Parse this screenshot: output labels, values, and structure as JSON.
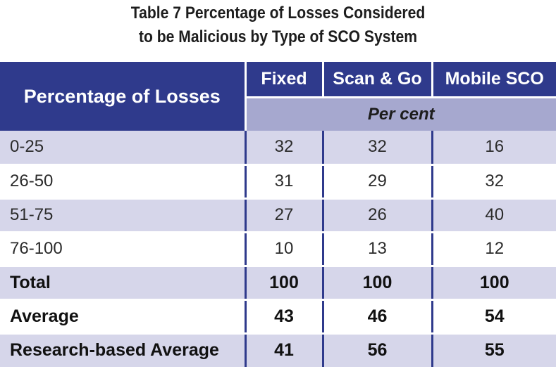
{
  "title": {
    "line1": "Table 7 Percentage of Losses Considered",
    "line2": "to be Malicious by Type of SCO System"
  },
  "header": {
    "row_label": "Percentage of Losses",
    "columns": [
      "Fixed",
      "Scan & Go",
      "Mobile SCO"
    ],
    "unit": "Per cent"
  },
  "rows": [
    {
      "label": "0-25",
      "values": [
        "32",
        "32",
        "16"
      ]
    },
    {
      "label": "26-50",
      "values": [
        "31",
        "29",
        "32"
      ]
    },
    {
      "label": "51-75",
      "values": [
        "27",
        "26",
        "40"
      ]
    },
    {
      "label": "76-100",
      "values": [
        "10",
        "13",
        "12"
      ]
    },
    {
      "label": "Total",
      "values": [
        "100",
        "100",
        "100"
      ]
    },
    {
      "label": "Average",
      "values": [
        "43",
        "46",
        "54"
      ]
    },
    {
      "label": "Research-based Average",
      "values": [
        "41",
        "56",
        "55"
      ]
    }
  ],
  "colors": {
    "header_bg": "#2f3a8c",
    "subheader_bg": "#a6a8cf",
    "row_alt_bg": "#d6d6ea"
  }
}
